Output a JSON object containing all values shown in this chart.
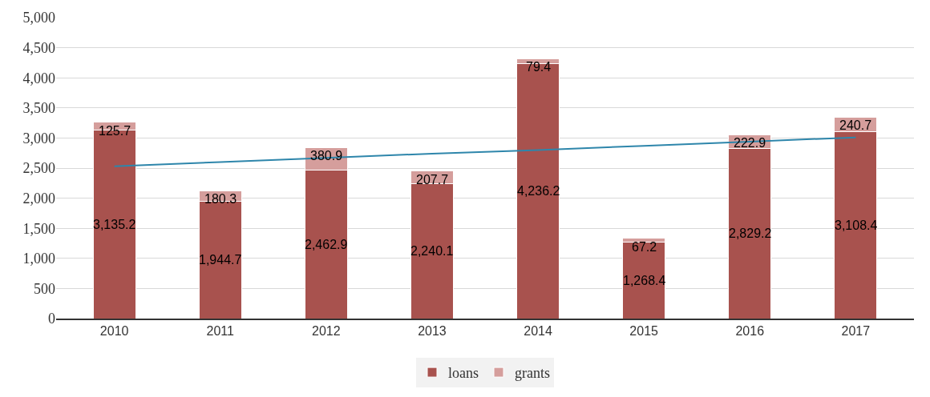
{
  "chart_data": {
    "type": "bar",
    "stacked": true,
    "categories": [
      "2010",
      "2011",
      "2012",
      "2013",
      "2014",
      "2015",
      "2016",
      "2017"
    ],
    "series": [
      {
        "name": "loans",
        "color": "#a8524e",
        "values": [
          3135.2,
          1944.7,
          2462.9,
          2240.1,
          4236.2,
          1268.4,
          2829.2,
          3108.4
        ],
        "value_labels": [
          "3,135.2",
          "1,944.7",
          "2,462.9",
          "2,240.1",
          "4,236.2",
          "1,268.4",
          "2,829.2",
          "3,108.4"
        ]
      },
      {
        "name": "grants",
        "color": "#d59e9c",
        "values": [
          125.7,
          180.3,
          380.9,
          207.7,
          79.4,
          67.2,
          222.9,
          240.7
        ],
        "value_labels": [
          "125.7",
          "180.3",
          "380.9",
          "207.7",
          "79.4",
          "67.2",
          "222.9",
          "240.7"
        ]
      },
      {
        "type": "line",
        "color": "#2e86ab",
        "values": [
          2530,
          2600,
          2670,
          2740,
          2800,
          2870,
          2940,
          3010
        ]
      }
    ],
    "ylim": [
      0,
      5000
    ],
    "yticks": [
      {
        "value": 0,
        "label": "0"
      },
      {
        "value": 500,
        "label": "500"
      },
      {
        "value": 1000,
        "label": "1,000"
      },
      {
        "value": 1500,
        "label": "1,500"
      },
      {
        "value": 2000,
        "label": "2,000"
      },
      {
        "value": 2500,
        "label": "2,500"
      },
      {
        "value": 3000,
        "label": "3,000"
      },
      {
        "value": 3500,
        "label": "3,500"
      },
      {
        "value": 4000,
        "label": "4,000"
      },
      {
        "value": 4500,
        "label": "4,500"
      },
      {
        "value": 5000,
        "label": "5,000"
      }
    ],
    "grid": "y",
    "legend": "bottom"
  }
}
